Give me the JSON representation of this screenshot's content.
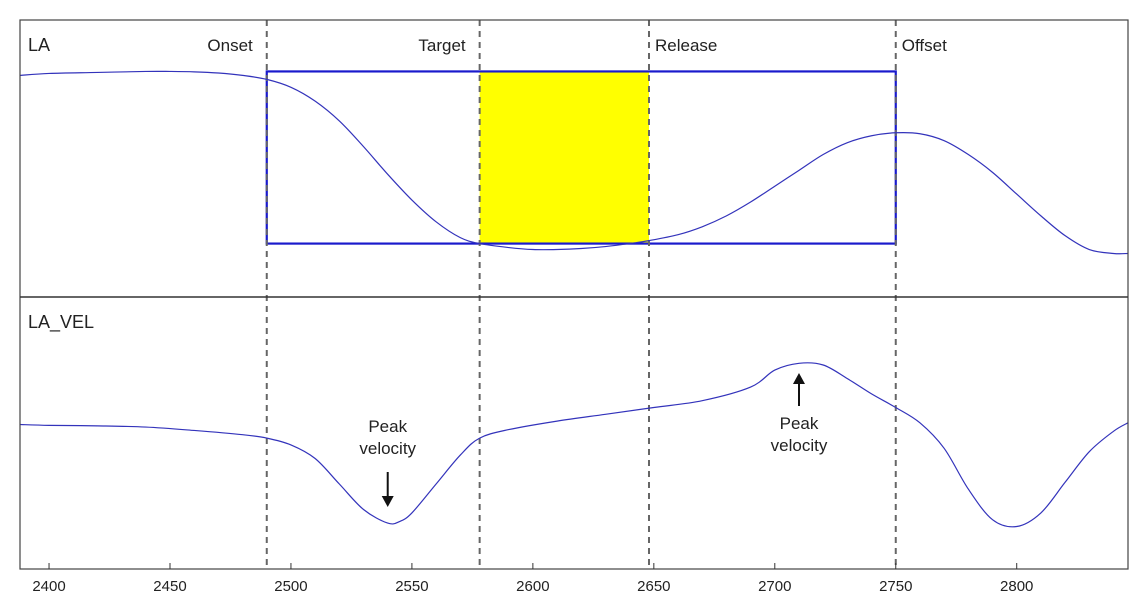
{
  "chart_data": {
    "type": "line",
    "x_range": [
      2388,
      2846
    ],
    "x_ticks": [
      2400,
      2450,
      2500,
      2550,
      2600,
      2650,
      2700,
      2750,
      2800
    ],
    "grid": false,
    "panels": [
      {
        "label": "LA",
        "series": {
          "x": [
            2388,
            2400,
            2420,
            2440,
            2450,
            2460,
            2470,
            2480,
            2490,
            2500,
            2510,
            2520,
            2530,
            2540,
            2550,
            2560,
            2570,
            2578,
            2590,
            2600,
            2610,
            2620,
            2630,
            2640,
            2648,
            2660,
            2670,
            2680,
            2690,
            2700,
            2710,
            2720,
            2730,
            2740,
            2750,
            2760,
            2770,
            2780,
            2790,
            2800,
            2810,
            2820,
            2830,
            2840,
            2846
          ],
          "y": [
            0.92,
            0.93,
            0.935,
            0.94,
            0.94,
            0.938,
            0.932,
            0.92,
            0.9,
            0.86,
            0.79,
            0.69,
            0.56,
            0.42,
            0.29,
            0.18,
            0.1,
            0.07,
            0.05,
            0.04,
            0.04,
            0.045,
            0.055,
            0.07,
            0.085,
            0.115,
            0.155,
            0.21,
            0.28,
            0.36,
            0.44,
            0.52,
            0.58,
            0.615,
            0.63,
            0.625,
            0.59,
            0.52,
            0.43,
            0.32,
            0.21,
            0.11,
            0.04,
            0.02,
            0.02
          ]
        },
        "y_range": [
          -0.2,
          1.2
        ]
      },
      {
        "label": "LA_VEL",
        "series": {
          "x": [
            2388,
            2400,
            2420,
            2440,
            2460,
            2480,
            2490,
            2500,
            2510,
            2520,
            2530,
            2540,
            2545,
            2550,
            2560,
            2570,
            2578,
            2590,
            2610,
            2630,
            2650,
            2670,
            2690,
            2700,
            2710,
            2720,
            2730,
            2740,
            2750,
            2760,
            2770,
            2780,
            2790,
            2800,
            2810,
            2820,
            2830,
            2840,
            2846
          ],
          "y": [
            0.0,
            -0.005,
            -0.008,
            -0.015,
            -0.035,
            -0.06,
            -0.08,
            -0.12,
            -0.2,
            -0.35,
            -0.5,
            -0.58,
            -0.57,
            -0.52,
            -0.35,
            -0.18,
            -0.08,
            -0.03,
            0.02,
            0.06,
            0.1,
            0.14,
            0.22,
            0.32,
            0.36,
            0.35,
            0.27,
            0.18,
            0.1,
            0.01,
            -0.14,
            -0.38,
            -0.56,
            -0.6,
            -0.52,
            -0.34,
            -0.16,
            -0.04,
            0.01
          ]
        },
        "y_range": [
          -0.85,
          0.75
        ]
      }
    ],
    "events": [
      {
        "label": "Onset",
        "x": 2490
      },
      {
        "label": "Target",
        "x": 2578
      },
      {
        "label": "Release",
        "x": 2648
      },
      {
        "label": "Offset",
        "x": 2750
      }
    ],
    "interval_box": {
      "x_start": 2490,
      "x_end": 2750,
      "y_top": 0.94,
      "y_bottom": 0.07
    },
    "highlight": {
      "x_start": 2578,
      "x_end": 2648
    },
    "annotations": [
      {
        "text_lines": [
          "Peak",
          "velocity"
        ],
        "x": 2540,
        "arrow": "down"
      },
      {
        "text_lines": [
          "Peak",
          "velocity"
        ],
        "x": 2710,
        "arrow": "up"
      }
    ],
    "colors": {
      "signal": "#3333bb",
      "box": "#1a1acc",
      "highlight": "#ffff00",
      "event_line": "#666666",
      "frame": "#444444"
    }
  }
}
